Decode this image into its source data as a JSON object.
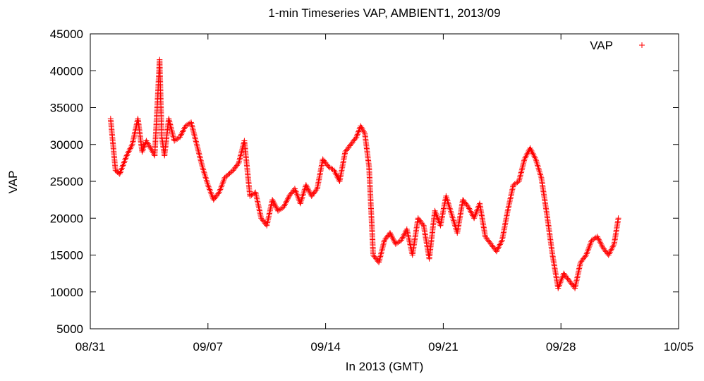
{
  "chart_data": {
    "type": "scatter",
    "title": "1-min Timeseries VAP, AMBIENT1, 2013/09",
    "xlabel": "In 2013 (GMT)",
    "ylabel": "VAP",
    "xlim": [
      "2013-08-31",
      "2013-10-05"
    ],
    "ylim": [
      5000,
      45000
    ],
    "x_ticks": [
      "08/31",
      "09/07",
      "09/14",
      "09/21",
      "09/28",
      "10/05"
    ],
    "y_ticks": [
      5000,
      10000,
      15000,
      20000,
      25000,
      30000,
      35000,
      40000,
      45000
    ],
    "legend": {
      "position": "top-right",
      "entries": [
        "VAP"
      ]
    },
    "grid": false,
    "series": [
      {
        "name": "VAP",
        "color": "#ff0000",
        "marker": "plus",
        "x": [
          "2013-09-01 05:00",
          "2013-09-01 12:00",
          "2013-09-01 18:00",
          "2013-09-02 04:00",
          "2013-09-02 12:00",
          "2013-09-02 20:00",
          "2013-09-03 02:00",
          "2013-09-03 08:00",
          "2013-09-03 14:00",
          "2013-09-03 20:00",
          "2013-09-04 03:00",
          "2013-09-04 06:00",
          "2013-09-04 10:00",
          "2013-09-04 16:00",
          "2013-09-05 00:00",
          "2013-09-05 08:00",
          "2013-09-05 16:00",
          "2013-09-06 00:00",
          "2013-09-06 08:00",
          "2013-09-06 16:00",
          "2013-09-07 00:00",
          "2013-09-07 08:00",
          "2013-09-07 16:00",
          "2013-09-08 00:00",
          "2013-09-08 12:00",
          "2013-09-08 20:00",
          "2013-09-09 04:00",
          "2013-09-09 12:00",
          "2013-09-09 20:00",
          "2013-09-10 04:00",
          "2013-09-10 12:00",
          "2013-09-10 20:00",
          "2013-09-11 04:00",
          "2013-09-11 12:00",
          "2013-09-11 20:00",
          "2013-09-12 04:00",
          "2013-09-12 12:00",
          "2013-09-12 20:00",
          "2013-09-13 04:00",
          "2013-09-13 12:00",
          "2013-09-13 20:00",
          "2013-09-14 04:00",
          "2013-09-14 12:00",
          "2013-09-14 20:00",
          "2013-09-15 04:00",
          "2013-09-15 12:00",
          "2013-09-15 20:00",
          "2013-09-16 02:00",
          "2013-09-16 08:00",
          "2013-09-16 14:00",
          "2013-09-16 20:00",
          "2013-09-17 04:00",
          "2013-09-17 12:00",
          "2013-09-17 20:00",
          "2013-09-18 04:00",
          "2013-09-18 12:00",
          "2013-09-18 20:00",
          "2013-09-19 04:00",
          "2013-09-19 12:00",
          "2013-09-19 20:00",
          "2013-09-20 04:00",
          "2013-09-20 12:00",
          "2013-09-20 20:00",
          "2013-09-21 04:00",
          "2013-09-21 12:00",
          "2013-09-21 20:00",
          "2013-09-22 04:00",
          "2013-09-22 12:00",
          "2013-09-22 20:00",
          "2013-09-23 04:00",
          "2013-09-23 12:00",
          "2013-09-23 20:00",
          "2013-09-24 04:00",
          "2013-09-24 12:00",
          "2013-09-24 20:00",
          "2013-09-25 04:00",
          "2013-09-25 12:00",
          "2013-09-25 20:00",
          "2013-09-26 04:00",
          "2013-09-26 12:00",
          "2013-09-26 20:00",
          "2013-09-27 04:00",
          "2013-09-27 12:00",
          "2013-09-27 20:00",
          "2013-09-28 04:00",
          "2013-09-28 12:00",
          "2013-09-28 20:00",
          "2013-09-29 04:00",
          "2013-09-29 12:00",
          "2013-09-29 20:00",
          "2013-09-30 04:00",
          "2013-09-30 12:00",
          "2013-09-30 20:00",
          "2013-10-01 04:00",
          "2013-10-01 10:00"
        ],
        "y": [
          33500,
          26500,
          26000,
          28500,
          30000,
          33500,
          29000,
          30500,
          29500,
          28500,
          41500,
          31000,
          28500,
          33500,
          30500,
          31000,
          32500,
          33000,
          30000,
          27000,
          24500,
          22500,
          23500,
          25500,
          26500,
          27500,
          30500,
          23000,
          23500,
          20000,
          19000,
          22500,
          21000,
          21500,
          23000,
          24000,
          22000,
          24500,
          23000,
          24000,
          28000,
          27000,
          26500,
          25000,
          29000,
          30000,
          31000,
          32500,
          31500,
          27000,
          15000,
          14000,
          17000,
          18000,
          16500,
          17000,
          18500,
          15000,
          20000,
          19000,
          14500,
          21000,
          19000,
          23000,
          20500,
          18000,
          22500,
          21500,
          20000,
          22000,
          17500,
          16500,
          15500,
          17000,
          21000,
          24500,
          25000,
          28000,
          29500,
          28000,
          25500,
          20500,
          15000,
          10500,
          12500,
          11500,
          10500,
          14000,
          15000,
          17000,
          17500,
          16000,
          15000,
          16500,
          20000
        ]
      }
    ]
  }
}
